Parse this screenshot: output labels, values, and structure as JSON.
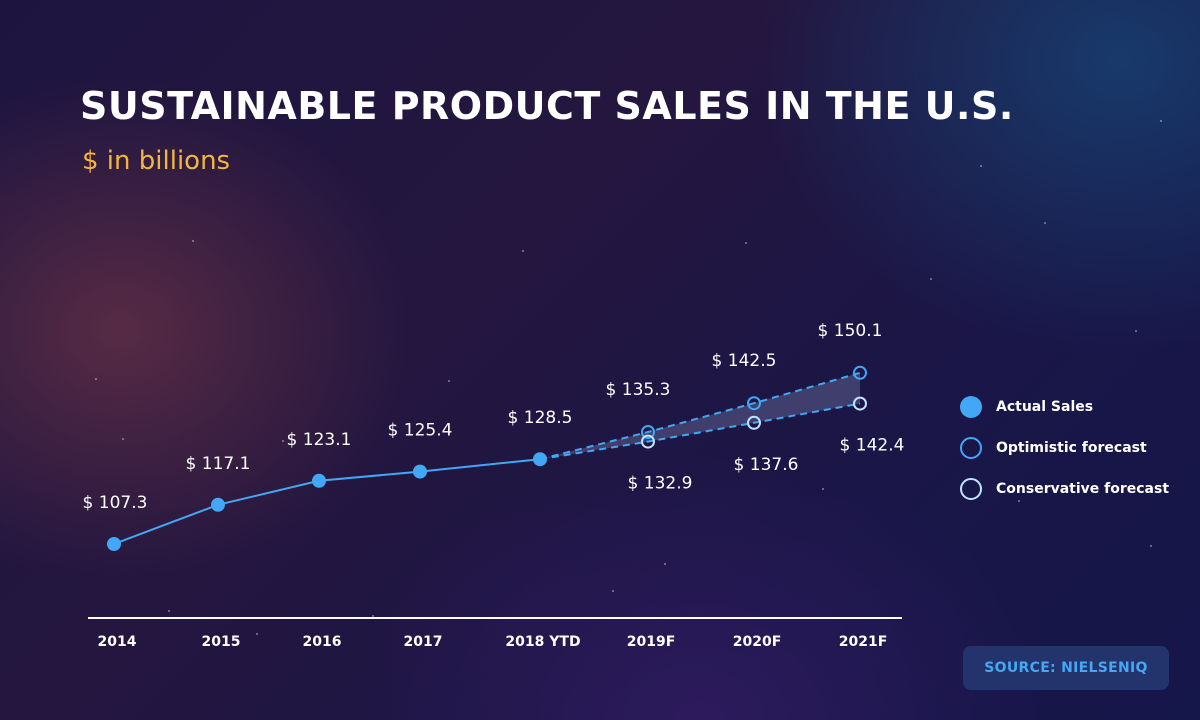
{
  "title": "SUSTAINABLE PRODUCT SALES IN THE U.S.",
  "subtitle": "$ in billions",
  "colors": {
    "actual": "#42a8f5",
    "optimistic": "#42a8f5",
    "conservative": "#bfe4ff",
    "subtitle": "#f5b43c",
    "band": "#6a6f9e"
  },
  "legend": [
    {
      "label": "Actual Sales",
      "marker": "filled-circle"
    },
    {
      "label": "Optimistic forecast",
      "marker": "hollow-circle"
    },
    {
      "label": "Conservative forecast",
      "marker": "hollow-circle-light"
    }
  ],
  "source": "SOURCE: NIELSENIQ",
  "chart_data": {
    "type": "line",
    "categories": [
      "2014",
      "2015",
      "2016",
      "2017",
      "2018 YTD",
      "2019F",
      "2020F",
      "2021F"
    ],
    "series": [
      {
        "name": "Actual Sales",
        "values": [
          107.3,
          117.1,
          123.1,
          125.4,
          128.5,
          null,
          null,
          null
        ],
        "labels": [
          "$ 107.3",
          "$ 117.1",
          "$ 123.1",
          "$ 125.4",
          "$ 128.5",
          null,
          null,
          null
        ]
      },
      {
        "name": "Optimistic forecast",
        "values": [
          null,
          null,
          null,
          null,
          128.5,
          135.3,
          142.5,
          150.1
        ],
        "labels": [
          null,
          null,
          null,
          null,
          null,
          "$ 135.3",
          "$ 142.5",
          "$ 150.1"
        ]
      },
      {
        "name": "Conservative forecast",
        "values": [
          null,
          null,
          null,
          null,
          128.5,
          132.9,
          137.6,
          142.4
        ],
        "labels": [
          null,
          null,
          null,
          null,
          null,
          "$ 132.9",
          "$ 137.6",
          "$ 142.4"
        ]
      }
    ],
    "grid": false,
    "legend_position": "right"
  }
}
